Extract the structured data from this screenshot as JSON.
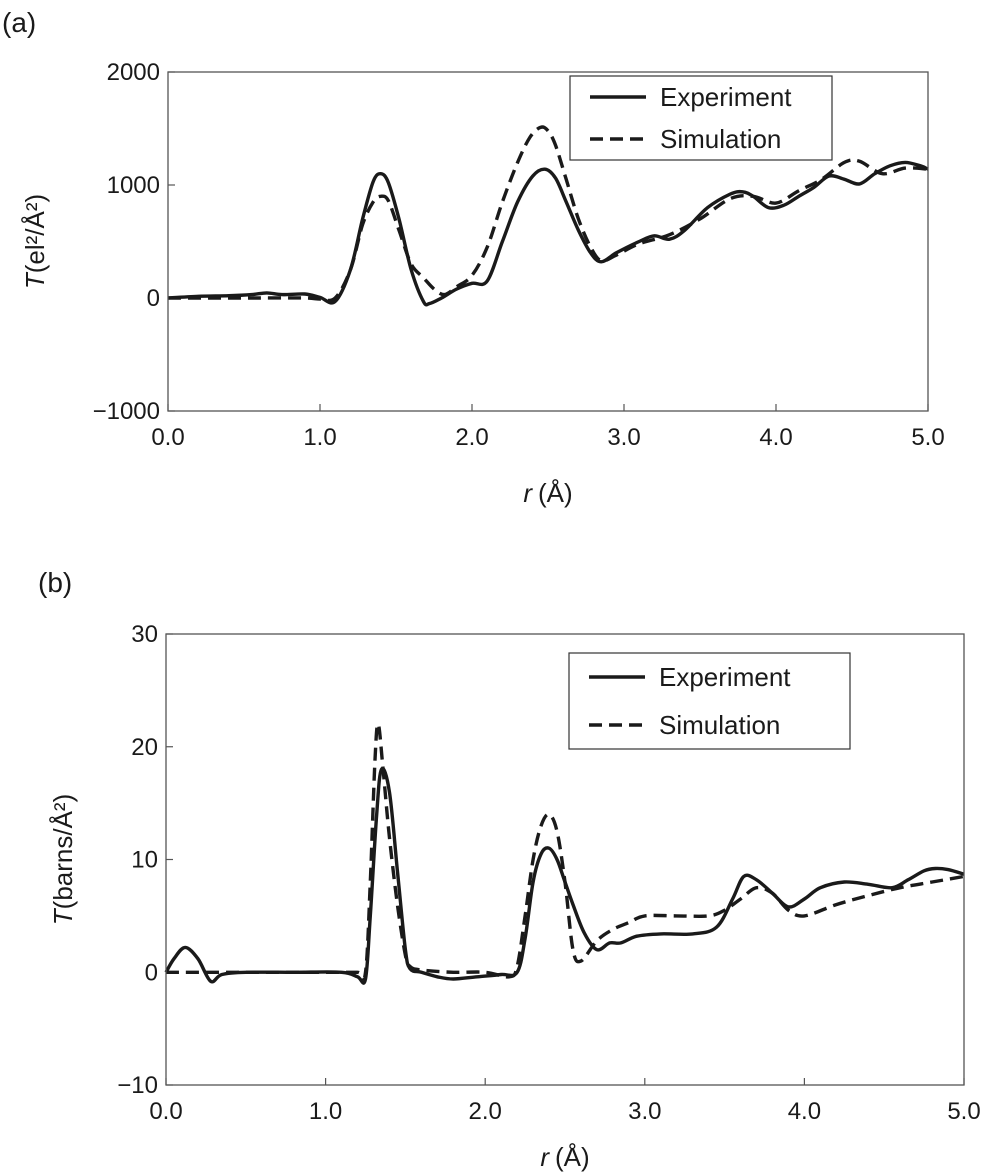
{
  "chart_data": [
    {
      "type": "line",
      "panel_label": "(a)",
      "ylabel": "T (el²/Å²)",
      "ylabel_var": "T",
      "ylabel_unit": "(el²/Å²)",
      "xlabel_var": "r",
      "xlabel_unit": "(Å)",
      "xlim": [
        0,
        5
      ],
      "ylim": [
        -1000,
        2000
      ],
      "xticks": [
        "0.0",
        "1.0",
        "2.0",
        "3.0",
        "4.0",
        "5.0"
      ],
      "yticks": [
        "−1000",
        "0",
        "1000",
        "2000"
      ],
      "ytick_values": [
        -1000,
        0,
        1000,
        2000
      ],
      "legend": "top-right",
      "grid": false,
      "series": [
        {
          "name": "Experiment",
          "style": "solid",
          "x": [
            0,
            0.2,
            0.4,
            0.55,
            0.65,
            0.75,
            0.9,
            1.0,
            1.1,
            1.2,
            1.28,
            1.35,
            1.4,
            1.45,
            1.52,
            1.6,
            1.68,
            1.72,
            1.8,
            1.9,
            2.0,
            2.1,
            2.2,
            2.3,
            2.4,
            2.48,
            2.55,
            2.62,
            2.7,
            2.78,
            2.85,
            2.95,
            3.1,
            3.2,
            3.3,
            3.4,
            3.55,
            3.7,
            3.78,
            3.85,
            3.95,
            4.05,
            4.15,
            4.25,
            4.35,
            4.45,
            4.55,
            4.65,
            4.75,
            4.85,
            4.95,
            5.0
          ],
          "y": [
            0,
            15,
            20,
            30,
            45,
            30,
            35,
            5,
            -30,
            250,
            700,
            1030,
            1100,
            1020,
            700,
            250,
            -30,
            -50,
            0,
            80,
            130,
            150,
            500,
            850,
            1080,
            1140,
            1060,
            850,
            600,
            400,
            320,
            400,
            500,
            550,
            520,
            600,
            800,
            920,
            940,
            900,
            800,
            820,
            900,
            980,
            1080,
            1050,
            1010,
            1100,
            1170,
            1200,
            1170,
            1140
          ]
        },
        {
          "name": "Simulation",
          "style": "dashed",
          "x": [
            0,
            0.3,
            0.6,
            0.9,
            1.0,
            1.1,
            1.2,
            1.28,
            1.35,
            1.4,
            1.45,
            1.52,
            1.6,
            1.68,
            1.75,
            1.82,
            1.9,
            2.0,
            2.1,
            2.2,
            2.3,
            2.38,
            2.45,
            2.5,
            2.55,
            2.62,
            2.7,
            2.78,
            2.85,
            2.95,
            3.1,
            3.3,
            3.5,
            3.7,
            3.85,
            4.0,
            4.15,
            4.3,
            4.45,
            4.55,
            4.7,
            4.85,
            5.0
          ],
          "y": [
            0,
            0,
            0,
            0,
            -10,
            0,
            250,
            650,
            850,
            900,
            860,
            600,
            300,
            180,
            80,
            30,
            100,
            200,
            450,
            850,
            1200,
            1420,
            1510,
            1480,
            1350,
            1050,
            700,
            450,
            330,
            380,
            480,
            560,
            700,
            880,
            900,
            840,
            950,
            1050,
            1200,
            1210,
            1100,
            1150,
            1140
          ]
        }
      ]
    },
    {
      "type": "line",
      "panel_label": "(b)",
      "ylabel": "T (barns/Å²)",
      "ylabel_var": "T",
      "ylabel_unit": "(barns/Å²)",
      "xlabel_var": "r",
      "xlabel_unit": "(Å)",
      "xlim": [
        0,
        5
      ],
      "ylim": [
        -10,
        30
      ],
      "xticks": [
        "0.0",
        "1.0",
        "2.0",
        "3.0",
        "4.0",
        "5.0"
      ],
      "yticks": [
        "−10",
        "0",
        "10",
        "20",
        "30"
      ],
      "ytick_values": [
        -10,
        0,
        10,
        20,
        30
      ],
      "legend": "top-right",
      "grid": false,
      "series": [
        {
          "name": "Experiment",
          "style": "solid",
          "x": [
            0,
            0.05,
            0.12,
            0.2,
            0.28,
            0.35,
            0.5,
            0.8,
            1.1,
            1.2,
            1.25,
            1.28,
            1.32,
            1.35,
            1.4,
            1.45,
            1.5,
            1.53,
            1.6,
            1.7,
            1.8,
            1.95,
            2.1,
            2.2,
            2.25,
            2.3,
            2.35,
            2.4,
            2.45,
            2.5,
            2.55,
            2.62,
            2.7,
            2.78,
            2.85,
            2.95,
            3.1,
            3.3,
            3.45,
            3.55,
            3.62,
            3.7,
            3.8,
            3.9,
            4.0,
            4.1,
            4.25,
            4.4,
            4.55,
            4.65,
            4.75,
            4.82,
            4.9,
            5.0
          ],
          "y": [
            0,
            1.2,
            2.2,
            1.2,
            -0.8,
            -0.2,
            0,
            0,
            0,
            -0.4,
            -0.6,
            5,
            14,
            18,
            16,
            9,
            2,
            0.3,
            0,
            -0.4,
            -0.6,
            -0.4,
            -0.2,
            0,
            3,
            8,
            10.5,
            11,
            10,
            8,
            6,
            3.5,
            2,
            2.6,
            2.6,
            3.2,
            3.4,
            3.4,
            4,
            6.5,
            8.5,
            8.2,
            7,
            5.8,
            6.5,
            7.5,
            8,
            7.8,
            7.5,
            8.2,
            9,
            9.2,
            9.1,
            8.7
          ]
        },
        {
          "name": "Simulation",
          "style": "dashed",
          "x": [
            0,
            0.5,
            1.0,
            1.2,
            1.25,
            1.28,
            1.31,
            1.33,
            1.36,
            1.4,
            1.45,
            1.5,
            1.53,
            1.6,
            1.8,
            2.0,
            2.15,
            2.2,
            2.25,
            2.3,
            2.35,
            2.4,
            2.45,
            2.5,
            2.55,
            2.6,
            2.7,
            2.8,
            2.9,
            3.0,
            3.2,
            3.4,
            3.5,
            3.6,
            3.7,
            3.8,
            3.9,
            4.0,
            4.2,
            4.4,
            4.6,
            4.8,
            5.0
          ],
          "y": [
            0,
            0,
            0,
            0,
            0,
            8,
            19,
            22,
            18,
            12,
            6,
            1.5,
            0.5,
            0.2,
            0,
            0,
            -0.4,
            0.5,
            5,
            10,
            13,
            14,
            12.5,
            8,
            2,
            1,
            2.8,
            3.8,
            4.4,
            5,
            5,
            5,
            5.5,
            6.5,
            7.5,
            7,
            5.5,
            5,
            6,
            6.8,
            7.5,
            8,
            8.5
          ]
        }
      ]
    }
  ]
}
